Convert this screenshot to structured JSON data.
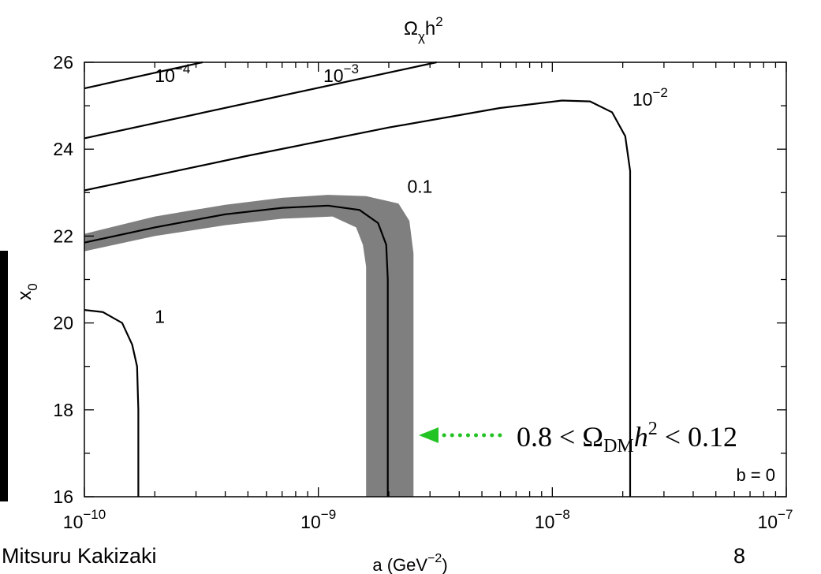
{
  "chart_data": {
    "type": "line",
    "title_main": "Ω",
    "title_sub": "χ",
    "title_tail": "h",
    "title_sup": "2",
    "xlabel_main": "a (GeV",
    "xlabel_sup": "−2",
    "xlabel_tail": ")",
    "ylabel_main": "x",
    "ylabel_sub": "0",
    "x_scale": "log",
    "xlim": [
      1e-10,
      1e-07
    ],
    "ylim": [
      16,
      26
    ],
    "x_ticks": [
      {
        "value": 1e-10,
        "base": "10",
        "exp": "−10"
      },
      {
        "value": 1e-09,
        "base": "10",
        "exp": "−9"
      },
      {
        "value": 1e-08,
        "base": "10",
        "exp": "−8"
      },
      {
        "value": 1e-07,
        "base": "10",
        "exp": "−7"
      }
    ],
    "y_ticks": [
      "16",
      "18",
      "20",
      "22",
      "24",
      "26"
    ],
    "grid": false,
    "series": [
      {
        "label_base": "1",
        "label_exp": "",
        "points": [
          [
            1e-10,
            20.3
          ],
          [
            1.2e-10,
            20.25
          ],
          [
            1.45e-10,
            20.0
          ],
          [
            1.6e-10,
            19.5
          ],
          [
            1.68e-10,
            19.0
          ],
          [
            1.7e-10,
            18.0
          ],
          [
            1.7e-10,
            16.0
          ]
        ]
      },
      {
        "label_base": "0.1",
        "label_exp": "",
        "points": [
          [
            1e-10,
            21.85
          ],
          [
            2e-10,
            22.2
          ],
          [
            4e-10,
            22.5
          ],
          [
            7e-10,
            22.65
          ],
          [
            1.1e-09,
            22.7
          ],
          [
            1.5e-09,
            22.6
          ],
          [
            1.8e-09,
            22.3
          ],
          [
            1.95e-09,
            21.8
          ],
          [
            1.98e-09,
            21.0
          ],
          [
            1.98e-09,
            16.0
          ]
        ]
      },
      {
        "label_base": "10",
        "label_exp": "−2",
        "points": [
          [
            1e-10,
            23.05
          ],
          [
            5e-10,
            23.85
          ],
          [
            2e-09,
            24.5
          ],
          [
            6e-09,
            24.95
          ],
          [
            1.1e-08,
            25.12
          ],
          [
            1.45e-08,
            25.1
          ],
          [
            1.8e-08,
            24.85
          ],
          [
            2.05e-08,
            24.3
          ],
          [
            2.15e-08,
            23.5
          ],
          [
            2.15e-08,
            16.0
          ]
        ]
      },
      {
        "label_base": "10",
        "label_exp": "−3",
        "points": [
          [
            1e-10,
            24.25
          ],
          [
            3.2e-09,
            26.0
          ]
        ]
      },
      {
        "label_base": "10",
        "label_exp": "−4",
        "points": [
          [
            1e-10,
            25.4
          ],
          [
            3.2e-10,
            26.0
          ]
        ]
      }
    ],
    "band": {
      "description_math": "0.8 < Ω",
      "description_sub": "DM",
      "description_h": "h",
      "description_sup": "2",
      "description_tail": " < 0.12",
      "color": "#7f7f7f",
      "arrow_color": "#22c322"
    },
    "annotation": "b = 0"
  },
  "footer": {
    "author": "Mitsuru Kakizaki",
    "page_number": "8"
  }
}
